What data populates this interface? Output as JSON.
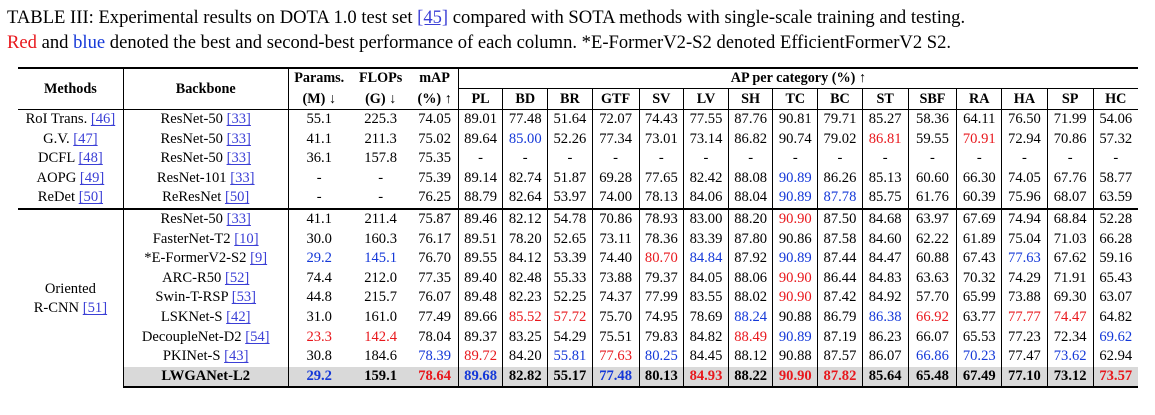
{
  "caption": {
    "line1_a": "TABLE III: Experimental results on DOTA 1.0 test set ",
    "line1_ref": "[45]",
    "line1_b": " compared with SOTA methods with single-scale training and testing.",
    "line2_red": "Red",
    "line2_a": " and ",
    "line2_blue": "blue",
    "line2_b": " denoted the best and second-best performance of each column. *E-FormerV2-S2 denoted EfficientFormerV2 S2."
  },
  "headers": {
    "methods": "Methods",
    "backbone": "Backbone",
    "params_1": "Params.",
    "params_2": "(M) ↓",
    "flops_1": "FLOPs",
    "flops_2": "(G) ↓",
    "map_1": "mAP",
    "map_2": "(%) ↑",
    "ap_per_category": "AP per category (%) ↑",
    "categories": [
      "PL",
      "BD",
      "BR",
      "GTF",
      "SV",
      "LV",
      "SH",
      "TC",
      "BC",
      "ST",
      "SBF",
      "RA",
      "HA",
      "SP",
      "HC"
    ]
  },
  "rows_group1": [
    {
      "method": "RoI Trans. ",
      "ref": "[46]",
      "backbone": "ResNet-50 ",
      "bref": "[33]",
      "cells": [
        "55.1",
        "225.3",
        "74.05",
        "89.01",
        "77.48",
        "51.64",
        "72.07",
        "74.43",
        "77.55",
        "87.76",
        "90.81",
        "79.71",
        "85.27",
        "58.36",
        "64.11",
        "76.50",
        "71.99",
        "54.06"
      ],
      "colors": [
        "",
        "",
        "",
        "",
        "",
        "",
        "",
        "",
        "",
        "",
        "",
        "",
        "",
        "",
        "",
        "",
        "",
        ""
      ]
    },
    {
      "method": "G.V. ",
      "ref": "[47]",
      "backbone": "ResNet-50 ",
      "bref": "[33]",
      "cells": [
        "41.1",
        "211.3",
        "75.02",
        "89.64",
        "85.00",
        "52.26",
        "77.34",
        "73.01",
        "73.14",
        "86.82",
        "90.74",
        "79.02",
        "86.81",
        "59.55",
        "70.91",
        "72.94",
        "70.86",
        "57.32"
      ],
      "colors": [
        "",
        "",
        "",
        "",
        "b",
        "",
        "",
        "",
        "",
        "",
        "",
        "",
        "r",
        "",
        "r",
        "",
        "",
        ""
      ]
    },
    {
      "method": "DCFL ",
      "ref": "[48]",
      "backbone": "ResNet-50 ",
      "bref": "[33]",
      "cells": [
        "36.1",
        "157.8",
        "75.35",
        "-",
        "-",
        "-",
        "-",
        "-",
        "-",
        "-",
        "-",
        "-",
        "-",
        "-",
        "-",
        "-",
        "-",
        "-"
      ],
      "colors": [
        "",
        "",
        "",
        "",
        "",
        "",
        "",
        "",
        "",
        "",
        "",
        "",
        "",
        "",
        "",
        "",
        "",
        ""
      ]
    },
    {
      "method": "AOPG ",
      "ref": "[49]",
      "backbone": "ResNet-101 ",
      "bref": "[33]",
      "cells": [
        "-",
        "-",
        "75.39",
        "89.14",
        "82.74",
        "51.87",
        "69.28",
        "77.65",
        "82.42",
        "88.08",
        "90.89",
        "86.26",
        "85.13",
        "60.60",
        "66.30",
        "74.05",
        "67.76",
        "58.77"
      ],
      "colors": [
        "",
        "",
        "",
        "",
        "",
        "",
        "",
        "",
        "",
        "",
        "b",
        "",
        "",
        "",
        "",
        "",
        "",
        ""
      ]
    },
    {
      "method": "ReDet ",
      "ref": "[50]",
      "backbone": "ReResNet ",
      "bref": "[50]",
      "cells": [
        "-",
        "-",
        "76.25",
        "88.79",
        "82.64",
        "53.97",
        "74.00",
        "78.13",
        "84.06",
        "88.04",
        "90.89",
        "87.78",
        "85.75",
        "61.76",
        "60.39",
        "75.96",
        "68.07",
        "63.59"
      ],
      "colors": [
        "",
        "",
        "",
        "",
        "",
        "",
        "",
        "",
        "",
        "",
        "b",
        "b",
        "",
        "",
        "",
        "",
        "",
        ""
      ]
    }
  ],
  "group2_label_1": "Oriented",
  "group2_label_2": "R-CNN ",
  "group2_ref": "[51]",
  "rows_group2": [
    {
      "prefix": "",
      "backbone": "ResNet-50 ",
      "bref": "[33]",
      "cells": [
        "41.1",
        "211.4",
        "75.87",
        "89.46",
        "82.12",
        "54.78",
        "70.86",
        "78.93",
        "83.00",
        "88.20",
        "90.90",
        "87.50",
        "84.68",
        "63.97",
        "67.69",
        "74.94",
        "68.84",
        "52.28"
      ],
      "colors": [
        "",
        "",
        "",
        "",
        "",
        "",
        "",
        "",
        "",
        "",
        "r",
        "",
        "",
        "",
        "",
        "",
        "",
        ""
      ]
    },
    {
      "prefix": "",
      "backbone": "FasterNet-T2 ",
      "bref": "[10]",
      "cells": [
        "30.0",
        "160.3",
        "76.17",
        "89.51",
        "78.20",
        "52.65",
        "73.11",
        "78.36",
        "83.39",
        "87.80",
        "90.86",
        "87.58",
        "84.60",
        "62.22",
        "61.89",
        "75.04",
        "71.03",
        "66.28"
      ],
      "colors": [
        "",
        "",
        "",
        "",
        "",
        "",
        "",
        "",
        "",
        "",
        "",
        "",
        "",
        "",
        "",
        "",
        "",
        ""
      ]
    },
    {
      "prefix": "*",
      "backbone": "E-FormerV2-S2 ",
      "bref": "[9]",
      "cells": [
        "29.2",
        "145.1",
        "76.70",
        "89.55",
        "84.12",
        "53.39",
        "74.40",
        "80.70",
        "84.84",
        "87.92",
        "90.89",
        "87.44",
        "84.47",
        "60.88",
        "67.43",
        "77.63",
        "67.62",
        "59.16"
      ],
      "colors": [
        "b",
        "b",
        "",
        "",
        "",
        "",
        "",
        "r",
        "b",
        "",
        "b",
        "",
        "",
        "",
        "",
        "b",
        "",
        ""
      ]
    },
    {
      "prefix": "",
      "backbone": "ARC-R50 ",
      "bref": "[52]",
      "cells": [
        "74.4",
        "212.0",
        "77.35",
        "89.40",
        "82.48",
        "55.33",
        "73.88",
        "79.37",
        "84.05",
        "88.06",
        "90.90",
        "86.44",
        "84.83",
        "63.63",
        "70.32",
        "74.29",
        "71.91",
        "65.43"
      ],
      "colors": [
        "",
        "",
        "",
        "",
        "",
        "",
        "",
        "",
        "",
        "",
        "r",
        "",
        "",
        "",
        "",
        "",
        "",
        ""
      ]
    },
    {
      "prefix": "",
      "backbone": "Swin-T-RSP ",
      "bref": "[53]",
      "cells": [
        "44.8",
        "215.7",
        "76.07",
        "89.48",
        "82.23",
        "52.25",
        "74.37",
        "77.99",
        "83.55",
        "88.02",
        "90.90",
        "87.42",
        "84.92",
        "57.70",
        "65.99",
        "73.88",
        "69.30",
        "63.07"
      ],
      "colors": [
        "",
        "",
        "",
        "",
        "",
        "",
        "",
        "",
        "",
        "",
        "r",
        "",
        "",
        "",
        "",
        "",
        "",
        ""
      ]
    },
    {
      "prefix": "",
      "backbone": "LSKNet-S ",
      "bref": "[42]",
      "cells": [
        "31.0",
        "161.0",
        "77.49",
        "89.66",
        "85.52",
        "57.72",
        "75.70",
        "74.95",
        "78.69",
        "88.24",
        "90.88",
        "86.79",
        "86.38",
        "66.92",
        "63.77",
        "77.77",
        "74.47",
        "64.82"
      ],
      "colors": [
        "",
        "",
        "",
        "",
        "r",
        "r",
        "",
        "",
        "",
        "b",
        "",
        "",
        "b",
        "r",
        "",
        "r",
        "r",
        ""
      ]
    },
    {
      "prefix": "",
      "backbone": "DecoupleNet-D2 ",
      "bref": "[54]",
      "cells": [
        "23.3",
        "142.4",
        "78.04",
        "89.37",
        "83.25",
        "54.29",
        "75.51",
        "79.83",
        "84.82",
        "88.49",
        "90.89",
        "87.19",
        "86.23",
        "66.07",
        "65.53",
        "77.23",
        "72.34",
        "69.62"
      ],
      "colors": [
        "r",
        "r",
        "",
        "",
        "",
        "",
        "",
        "",
        "",
        "r",
        "b",
        "",
        "",
        "",
        "",
        "",
        "",
        "b"
      ]
    },
    {
      "prefix": "",
      "backbone": "PKINet-S ",
      "bref": "[43]",
      "cells": [
        "30.8",
        "184.6",
        "78.39",
        "89.72",
        "84.20",
        "55.81",
        "77.63",
        "80.25",
        "84.45",
        "88.12",
        "90.88",
        "87.57",
        "86.07",
        "66.86",
        "70.23",
        "77.47",
        "73.62",
        "62.94"
      ],
      "colors": [
        "",
        "",
        "b",
        "r",
        "",
        "b",
        "r",
        "b",
        "",
        "",
        "",
        "",
        "",
        "b",
        "b",
        "",
        "b",
        ""
      ]
    }
  ],
  "highlight_row": {
    "backbone": "LWGANet-L2",
    "cells": [
      "29.2",
      "159.1",
      "78.64",
      "89.68",
      "82.82",
      "55.17",
      "77.48",
      "80.13",
      "84.93",
      "88.22",
      "90.90",
      "87.82",
      "85.64",
      "65.48",
      "67.49",
      "77.10",
      "73.12",
      "73.57"
    ],
    "colors": [
      "b",
      "",
      "r",
      "b",
      "",
      "",
      "b",
      "",
      "r",
      "",
      "r",
      "r",
      "",
      "",
      "",
      "",
      "",
      "r"
    ]
  },
  "colors": {
    "red": "#e8171c",
    "blue": "#1438d8",
    "link": "#3b3fd6",
    "highlight": "#d9d9d9"
  }
}
